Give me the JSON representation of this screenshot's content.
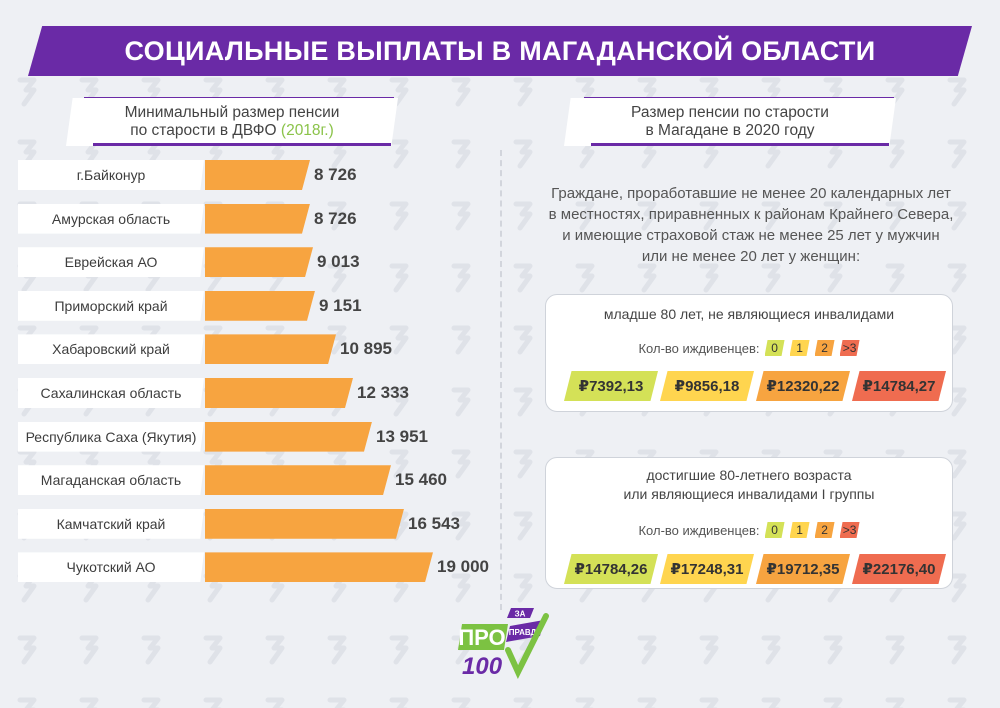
{
  "title": "СОЦИАЛЬНЫЕ ВЫПЛАТЫ В МАГАДАНСКОЙ ОБЛАСТИ",
  "left_header": {
    "line1": "Минимальный размер пенсии",
    "line2": "по старости в ДВФО",
    "year": "(2018г.)"
  },
  "right_header": {
    "line1": "Размер пенсии по старости",
    "line2": "в Магадане в 2020 году"
  },
  "chart_data": {
    "type": "bar",
    "orientation": "horizontal",
    "title": "Минимальный размер пенсии по старости в ДВФО (2018г.)",
    "categories": [
      "г.Байконур",
      "Амурская область",
      "Еврейская АО",
      "Приморский край",
      "Хабаровский край",
      "Сахалинская область",
      "Республика Саха (Якутия)",
      "Магаданская область",
      "Камчатский край",
      "Чукотский АО"
    ],
    "values": [
      8726,
      8726,
      9013,
      9151,
      10895,
      12333,
      13951,
      15460,
      16543,
      19000
    ],
    "value_labels": [
      "8 726",
      "8 726",
      "9 013",
      "9 151",
      "10 895",
      "12 333",
      "13 951",
      "15 460",
      "16 543",
      "19 000"
    ],
    "bar_color": "#f7a440"
  },
  "description": {
    "line1": "Граждане, проработавшие не менее 20 календарных лет",
    "line2": "в местностях, приравненных к районам Крайнего Севера,",
    "line3": "и имеющие страховой стаж не менее 25 лет у мужчин",
    "line4": "или не менее 20 лет у женщин:"
  },
  "dependents_label": "Кол-во иждивенцев:",
  "dependents": [
    "0",
    "1",
    "2",
    ">3"
  ],
  "tier_colors": [
    "#d4e157",
    "#ffd54f",
    "#f7a440",
    "#ef6c50"
  ],
  "panel1": {
    "title": "младше 80 лет, не являющиеся инвалидами",
    "amounts": [
      "₽7392,13",
      "₽9856,18",
      "₽12320,22",
      "₽14784,27"
    ]
  },
  "panel2": {
    "title_line1": "достигшие 80-летнего возраста",
    "title_line2": "или являющиеся инвалидами I группы",
    "amounts": [
      "₽14784,26",
      "₽17248,31",
      "₽19712,35",
      "₽22176,40"
    ]
  },
  "logo": {
    "main": "ПРО",
    "sub": "100",
    "za": "ЗА",
    "pravdu": "ПРАВДУ",
    "primary_color": "#6a2aa6",
    "accent_color": "#7cc242"
  }
}
